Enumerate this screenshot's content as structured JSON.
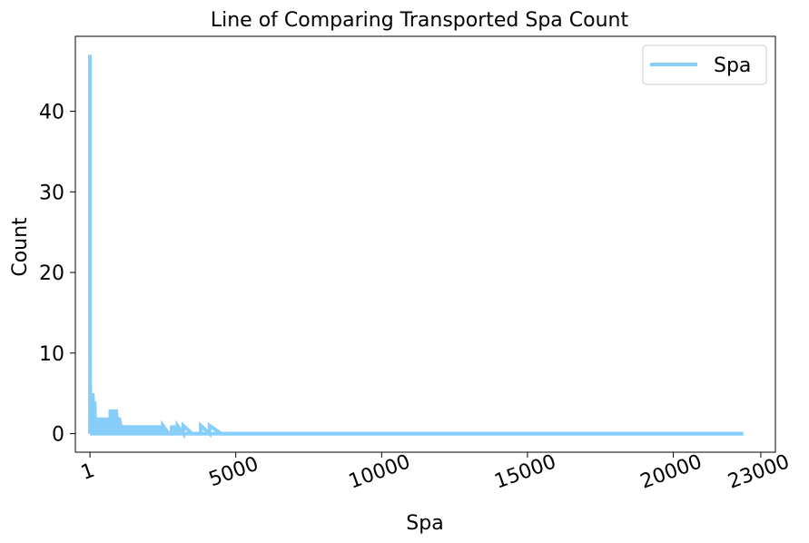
{
  "chart_data": {
    "type": "line",
    "title": "Line of Comparing Transported Spa Count",
    "xlabel": "Spa",
    "ylabel": "Count",
    "xlim": [
      -500,
      23500
    ],
    "ylim": [
      -2.3,
      49.3
    ],
    "x_ticks": [
      1,
      5000,
      10000,
      15000,
      20000,
      23000
    ],
    "x_tick_labels": [
      "1",
      "5000",
      "10000",
      "15000",
      "20000",
      "23000"
    ],
    "y_ticks": [
      0,
      10,
      20,
      30,
      40
    ],
    "y_tick_labels": [
      "0",
      "10",
      "20",
      "30",
      "40"
    ],
    "grid": false,
    "legend": "upper right",
    "color": "#87CEFA",
    "series": [
      {
        "name": "Spa",
        "x": [
          0,
          1,
          3,
          5,
          8,
          12,
          20,
          30,
          45,
          60,
          80,
          100,
          130,
          160,
          200,
          250,
          300,
          350,
          400,
          450,
          500,
          550,
          600,
          650,
          700,
          750,
          800,
          850,
          900,
          950,
          1000,
          1100,
          1200,
          1300,
          1400,
          1500,
          1600,
          1700,
          1800,
          1900,
          2000,
          2100,
          2200,
          2300,
          2400,
          2500,
          2700,
          2800,
          2900,
          3000,
          3200,
          3500,
          3800,
          4100,
          4500,
          5000,
          10000,
          15000,
          20000,
          22400
        ],
        "y": [
          47,
          15,
          10,
          8,
          7,
          6,
          5,
          5,
          4,
          3,
          4,
          5,
          3,
          4,
          2,
          2,
          2,
          2,
          2,
          2,
          2,
          2,
          2,
          2,
          3,
          2,
          3,
          2,
          3,
          2,
          2,
          1,
          1,
          1,
          1,
          1,
          1,
          1,
          1,
          1,
          1,
          1,
          1,
          1,
          1,
          1,
          0,
          1,
          1,
          1,
          1,
          0,
          1,
          1,
          0,
          0,
          0,
          0,
          0,
          0
        ]
      }
    ]
  }
}
